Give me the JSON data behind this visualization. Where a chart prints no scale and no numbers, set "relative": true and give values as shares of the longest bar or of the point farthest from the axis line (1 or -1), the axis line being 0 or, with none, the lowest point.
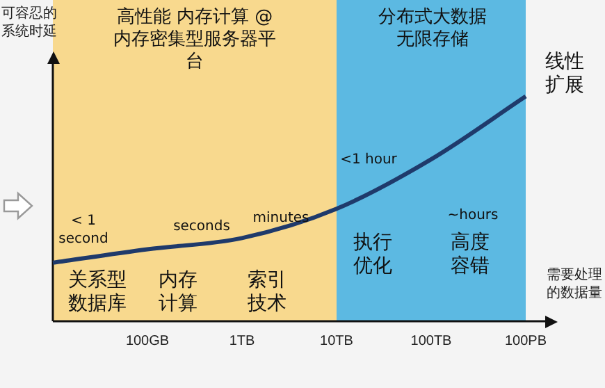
{
  "chart_data": {
    "type": "line",
    "relative": true,
    "ylabel": "可容忍的系统时延",
    "xlabel": "需要处理的数据量",
    "categories": [
      null,
      "100GB",
      "1TB",
      "10TB",
      "100TB",
      "100PB"
    ],
    "values": [
      0.26,
      0.32,
      0.37,
      0.5,
      0.72,
      1
    ],
    "color": "#1f3a6b",
    "line_style": "solid",
    "annotations": [
      "< 1 second",
      "seconds",
      "minutes",
      "<1 hour",
      "~hours",
      "线性扩展",
      "关系型数据库",
      "内存计算",
      "索引技术",
      "执行优化",
      "高度容错",
      "高性能 内存计算 @内存密集型服务器平台",
      "分布式大数据无限存储"
    ],
    "grid": false,
    "legend": false
  }
}
